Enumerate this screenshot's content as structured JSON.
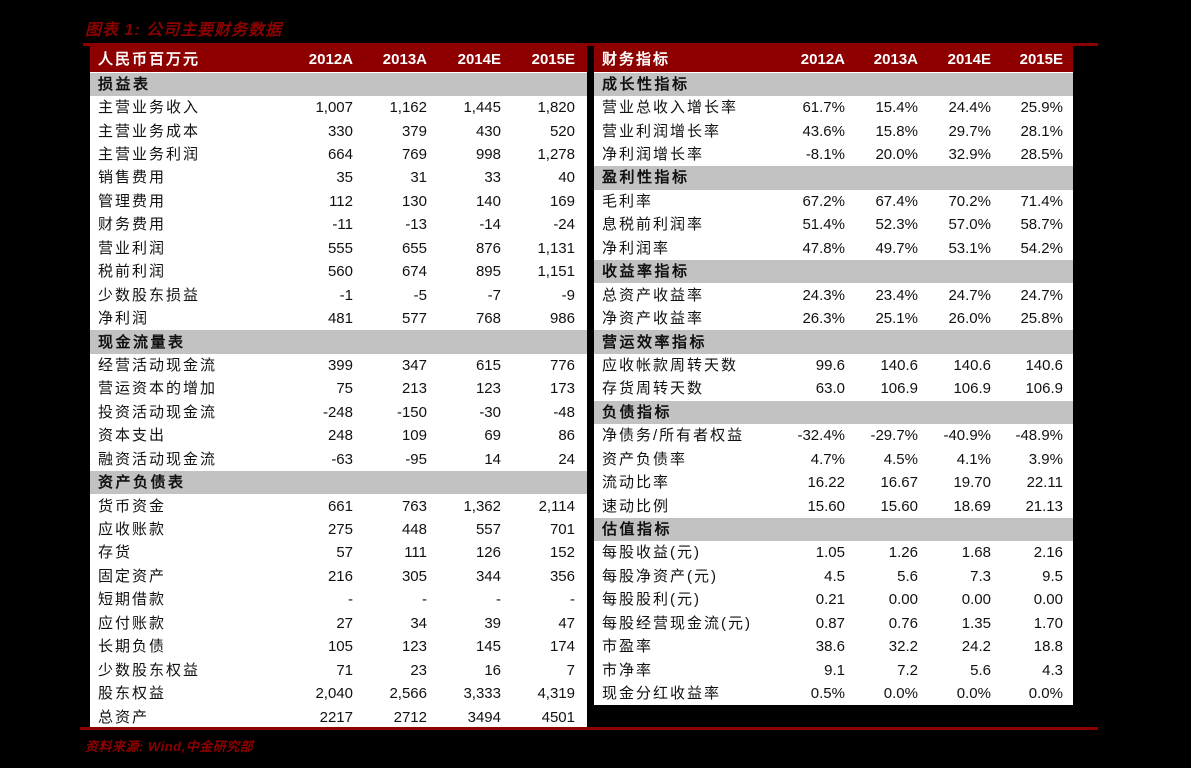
{
  "page": {
    "title": "图表 1: 公司主要财务数据",
    "source": "资料来源:  Wind,中金研究部",
    "colors": {
      "accent": "#8b0000",
      "header_bg": "#8e0000",
      "section_bg": "#c2c2c2",
      "page_bg": "#000000",
      "table_bg": "#ffffff",
      "header_text": "#ffffff"
    }
  },
  "columns": [
    "2012A",
    "2013A",
    "2014E",
    "2015E"
  ],
  "left_table": {
    "header_label": "人民币百万元",
    "sections": [
      {
        "title": "损益表",
        "rows": [
          {
            "label": "主营业务收入",
            "values": [
              "1,007",
              "1,162",
              "1,445",
              "1,820"
            ]
          },
          {
            "label": "主营业务成本",
            "values": [
              "330",
              "379",
              "430",
              "520"
            ]
          },
          {
            "label": "主营业务利润",
            "values": [
              "664",
              "769",
              "998",
              "1,278"
            ]
          },
          {
            "label": "销售费用",
            "values": [
              "35",
              "31",
              "33",
              "40"
            ]
          },
          {
            "label": "管理费用",
            "values": [
              "112",
              "130",
              "140",
              "169"
            ]
          },
          {
            "label": "财务费用",
            "values": [
              "-11",
              "-13",
              "-14",
              "-24"
            ]
          },
          {
            "label": "营业利润",
            "values": [
              "555",
              "655",
              "876",
              "1,131"
            ]
          },
          {
            "label": "税前利润",
            "values": [
              "560",
              "674",
              "895",
              "1,151"
            ]
          },
          {
            "label": "少数股东损益",
            "values": [
              "-1",
              "-5",
              "-7",
              "-9"
            ]
          },
          {
            "label": "净利润",
            "values": [
              "481",
              "577",
              "768",
              "986"
            ]
          }
        ]
      },
      {
        "title": "现金流量表",
        "rows": [
          {
            "label": "经营活动现金流",
            "values": [
              "399",
              "347",
              "615",
              "776"
            ]
          },
          {
            "label": "营运资本的增加",
            "values": [
              "75",
              "213",
              "123",
              "173"
            ]
          },
          {
            "label": "投资活动现金流",
            "values": [
              "-248",
              "-150",
              "-30",
              "-48"
            ]
          },
          {
            "label": "资本支出",
            "values": [
              "248",
              "109",
              "69",
              "86"
            ]
          },
          {
            "label": "融资活动现金流",
            "values": [
              "-63",
              "-95",
              "14",
              "24"
            ]
          }
        ]
      },
      {
        "title": "资产负债表",
        "rows": [
          {
            "label": "货币资金",
            "values": [
              "661",
              "763",
              "1,362",
              "2,114"
            ]
          },
          {
            "label": "应收账款",
            "values": [
              "275",
              "448",
              "557",
              "701"
            ]
          },
          {
            "label": "存货",
            "values": [
              "57",
              "111",
              "126",
              "152"
            ]
          },
          {
            "label": "固定资产",
            "values": [
              "216",
              "305",
              "344",
              "356"
            ]
          },
          {
            "label": "短期借款",
            "values": [
              "-",
              "-",
              "-",
              "-"
            ]
          },
          {
            "label": "应付账款",
            "values": [
              "27",
              "34",
              "39",
              "47"
            ]
          },
          {
            "label": "长期负债",
            "values": [
              "105",
              "123",
              "145",
              "174"
            ]
          },
          {
            "label": "少数股东权益",
            "values": [
              "71",
              "23",
              "16",
              "7"
            ]
          },
          {
            "label": "股东权益",
            "values": [
              "2,040",
              "2,566",
              "3,333",
              "4,319"
            ]
          },
          {
            "label": "总资产",
            "values": [
              "2217",
              "2712",
              "3494",
              "4501"
            ]
          }
        ]
      }
    ]
  },
  "right_table": {
    "header_label": "财务指标",
    "sections": [
      {
        "title": "成长性指标",
        "rows": [
          {
            "label": "营业总收入增长率",
            "values": [
              "61.7%",
              "15.4%",
              "24.4%",
              "25.9%"
            ]
          },
          {
            "label": "营业利润增长率",
            "values": [
              "43.6%",
              "15.8%",
              "29.7%",
              "28.1%"
            ]
          },
          {
            "label": "净利润增长率",
            "values": [
              "-8.1%",
              "20.0%",
              "32.9%",
              "28.5%"
            ]
          }
        ]
      },
      {
        "title": "盈利性指标",
        "rows": [
          {
            "label": "毛利率",
            "values": [
              "67.2%",
              "67.4%",
              "70.2%",
              "71.4%"
            ]
          },
          {
            "label": "息税前利润率",
            "values": [
              "51.4%",
              "52.3%",
              "57.0%",
              "58.7%"
            ]
          },
          {
            "label": "净利润率",
            "values": [
              "47.8%",
              "49.7%",
              "53.1%",
              "54.2%"
            ]
          }
        ]
      },
      {
        "title": "收益率指标",
        "rows": [
          {
            "label": "总资产收益率",
            "values": [
              "24.3%",
              "23.4%",
              "24.7%",
              "24.7%"
            ]
          },
          {
            "label": "净资产收益率",
            "values": [
              "26.3%",
              "25.1%",
              "26.0%",
              "25.8%"
            ]
          }
        ]
      },
      {
        "title": "营运效率指标",
        "rows": [
          {
            "label": "应收帐款周转天数",
            "values": [
              "99.6",
              "140.6",
              "140.6",
              "140.6"
            ]
          },
          {
            "label": "存货周转天数",
            "values": [
              "63.0",
              "106.9",
              "106.9",
              "106.9"
            ]
          }
        ]
      },
      {
        "title": "负债指标",
        "rows": [
          {
            "label": "净债务/所有者权益",
            "values": [
              "-32.4%",
              "-29.7%",
              "-40.9%",
              "-48.9%"
            ]
          },
          {
            "label": "资产负债率",
            "values": [
              "4.7%",
              "4.5%",
              "4.1%",
              "3.9%"
            ]
          },
          {
            "label": "流动比率",
            "values": [
              "16.22",
              "16.67",
              "19.70",
              "22.11"
            ]
          },
          {
            "label": "速动比例",
            "values": [
              "15.60",
              "15.60",
              "18.69",
              "21.13"
            ]
          }
        ]
      },
      {
        "title": "估值指标",
        "rows": [
          {
            "label": "每股收益(元)",
            "values": [
              "1.05",
              "1.26",
              "1.68",
              "2.16"
            ]
          },
          {
            "label": "每股净资产(元)",
            "values": [
              "4.5",
              "5.6",
              "7.3",
              "9.5"
            ]
          },
          {
            "label": "每股股利(元)",
            "values": [
              "0.21",
              "0.00",
              "0.00",
              "0.00"
            ]
          },
          {
            "label": "每股经营现金流(元)",
            "values": [
              "0.87",
              "0.76",
              "1.35",
              "1.70"
            ]
          },
          {
            "label": "市盈率",
            "values": [
              "38.6",
              "32.2",
              "24.2",
              "18.8"
            ]
          },
          {
            "label": "市净率",
            "values": [
              "9.1",
              "7.2",
              "5.6",
              "4.3"
            ]
          },
          {
            "label": "现金分红收益率",
            "values": [
              "0.5%",
              "0.0%",
              "0.0%",
              "0.0%"
            ]
          }
        ]
      }
    ]
  }
}
